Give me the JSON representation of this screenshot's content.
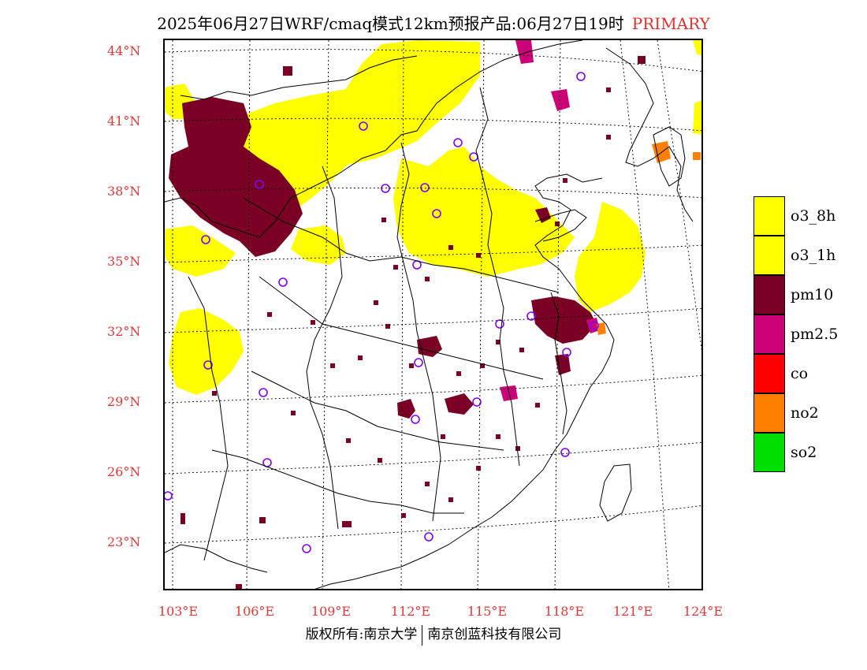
{
  "header": {
    "title": "2025年06月27日WRF/cmaq模式12km预报产品:06月27日19时",
    "tag": "PRIMARY"
  },
  "map": {
    "lat_labels": [
      "44°N",
      "41°N",
      "38°N",
      "35°N",
      "32°N",
      "29°N",
      "26°N",
      "23°N"
    ],
    "lon_labels": [
      "103°E",
      "106°E",
      "109°E",
      "112°E",
      "115°E",
      "118°E",
      "121°E",
      "124°E"
    ],
    "colors": {
      "o3": "#ffff00",
      "pm10": "#7a0026",
      "pm25": "#cc0077",
      "no2": "#ff8000",
      "site_marker": "#8000ff",
      "label": "#e03838"
    }
  },
  "legend": {
    "items": [
      {
        "label": "o3_8h",
        "color": "#ffff00"
      },
      {
        "label": "o3_1h",
        "color": "#ffff00"
      },
      {
        "label": "pm10",
        "color": "#7a0026"
      },
      {
        "label": "pm2.5",
        "color": "#cc0077"
      },
      {
        "label": "co",
        "color": "#ff0000"
      },
      {
        "label": "no2",
        "color": "#ff8000"
      },
      {
        "label": "so2",
        "color": "#00dd00"
      }
    ]
  },
  "footer": {
    "left": "版权所有:南京大学",
    "right": "南京创蓝科技有限公司"
  }
}
